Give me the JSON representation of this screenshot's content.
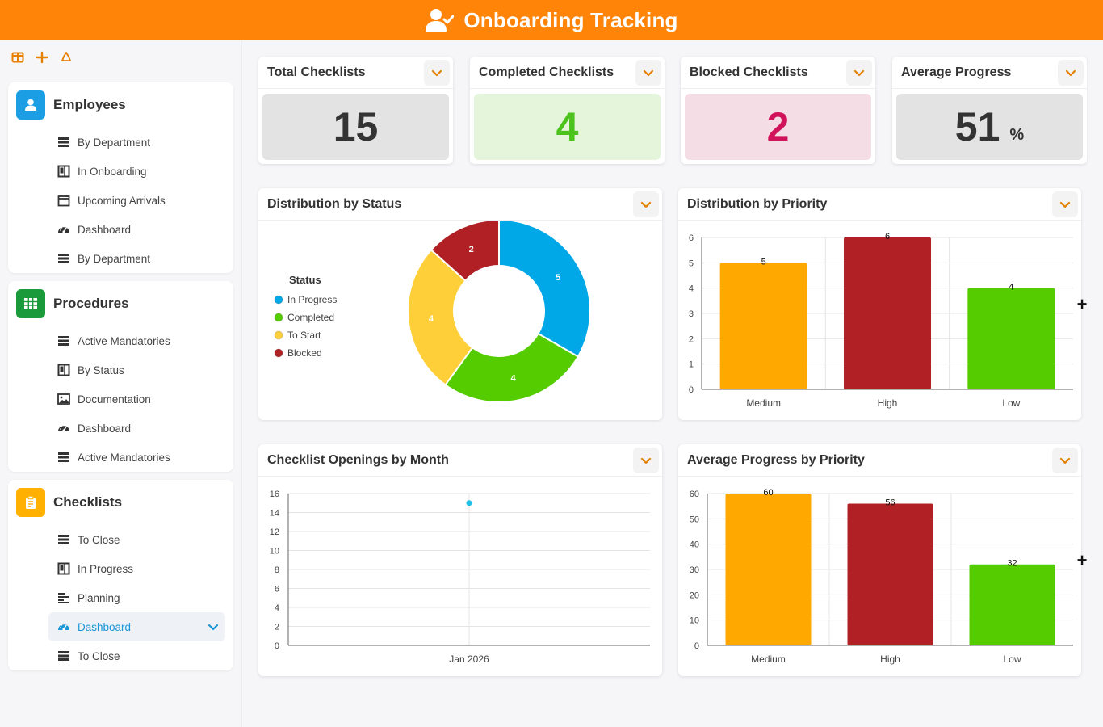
{
  "header": {
    "title": "Onboarding Tracking"
  },
  "sidebar": {
    "sections": [
      {
        "title": "Employees",
        "color": "#1c9ee5",
        "items": [
          {
            "label": "By Department",
            "icon": "table-icon"
          },
          {
            "label": "In Onboarding",
            "icon": "kanban-icon"
          },
          {
            "label": "Upcoming Arrivals",
            "icon": "calendar-icon"
          },
          {
            "label": "Dashboard",
            "icon": "gauge-icon"
          },
          {
            "label": "By Department",
            "icon": "table-icon"
          }
        ]
      },
      {
        "title": "Procedures",
        "color": "#1a9a3a",
        "items": [
          {
            "label": "Active Mandatories",
            "icon": "table-icon"
          },
          {
            "label": "By Status",
            "icon": "kanban-icon"
          },
          {
            "label": "Documentation",
            "icon": "gallery-icon"
          },
          {
            "label": "Dashboard",
            "icon": "gauge-icon"
          },
          {
            "label": "Active Mandatories",
            "icon": "table-icon"
          }
        ]
      },
      {
        "title": "Checklists",
        "color": "#ffb000",
        "items": [
          {
            "label": "To Close",
            "icon": "table-icon"
          },
          {
            "label": "In Progress",
            "icon": "kanban-icon"
          },
          {
            "label": "Planning",
            "icon": "gantt-icon"
          },
          {
            "label": "Dashboard",
            "icon": "gauge-icon",
            "active": true
          },
          {
            "label": "To Close",
            "icon": "table-icon"
          }
        ]
      }
    ]
  },
  "kpis": [
    {
      "title": "Total Checklists",
      "value": "15",
      "unit": "",
      "bg": "#e3e3e3",
      "color": "#333333"
    },
    {
      "title": "Completed Checklists",
      "value": "4",
      "unit": "",
      "bg": "#e4f5dc",
      "color": "#4cc21c"
    },
    {
      "title": "Blocked Checklists",
      "value": "2",
      "unit": "",
      "bg": "#f5dde6",
      "color": "#d0135a"
    },
    {
      "title": "Average Progress",
      "value": "51",
      "unit": "%",
      "bg": "#e3e3e3",
      "color": "#333333"
    }
  ],
  "panels": {
    "status": "Distribution by Status",
    "priority": "Distribution by Priority",
    "openings": "Checklist Openings by Month",
    "avg_progress": "Average Progress by Priority"
  },
  "chart_data": [
    {
      "type": "pie",
      "title": "Distribution by Status",
      "legend_title": "Status",
      "legend_position": "left",
      "categories": [
        "In Progress",
        "Completed",
        "To Start",
        "Blocked"
      ],
      "values": [
        5,
        4,
        4,
        2
      ],
      "colors": [
        "#00a8e8",
        "#55cc00",
        "#ffcf3a",
        "#b02024"
      ]
    },
    {
      "type": "bar",
      "title": "Distribution by Priority",
      "categories": [
        "Medium",
        "High",
        "Low"
      ],
      "values": [
        5,
        6,
        4
      ],
      "colors": [
        "#ffa800",
        "#b02024",
        "#55cc00"
      ],
      "ylim": [
        0,
        6
      ],
      "yticks": [
        0,
        1,
        2,
        3,
        4,
        5,
        6
      ],
      "grid": true
    },
    {
      "type": "scatter",
      "title": "Checklist Openings by Month",
      "x": [
        "Jan 2026"
      ],
      "values": [
        15
      ],
      "color": "#1cc0e8",
      "ylim": [
        0,
        16
      ],
      "yticks": [
        0,
        2,
        4,
        6,
        8,
        10,
        12,
        14,
        16
      ],
      "grid": true
    },
    {
      "type": "bar",
      "title": "Average Progress by Priority",
      "categories": [
        "Medium",
        "High",
        "Low"
      ],
      "values": [
        60,
        56,
        32
      ],
      "colors": [
        "#ffa800",
        "#b02024",
        "#55cc00"
      ],
      "ylim": [
        0,
        60
      ],
      "yticks": [
        0,
        10,
        20,
        30,
        40,
        50,
        60
      ],
      "grid": true
    }
  ]
}
